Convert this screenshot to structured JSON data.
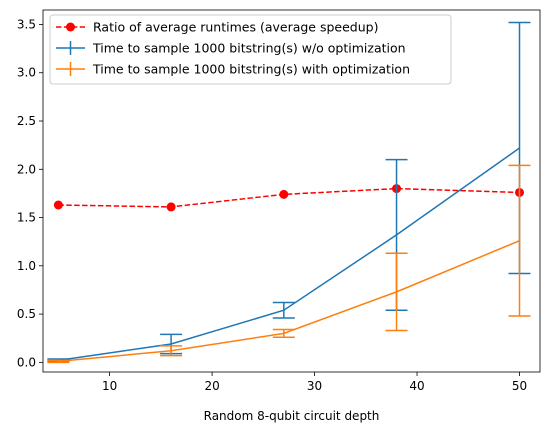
{
  "chart_data": {
    "type": "line",
    "xlabel": "Random 8-qubit circuit depth",
    "ylabel": "",
    "xlim": [
      3.5,
      52
    ],
    "ylim": [
      -0.1,
      3.65
    ],
    "xticks": [
      10,
      20,
      30,
      40,
      50
    ],
    "yticks": [
      0.0,
      0.5,
      1.0,
      1.5,
      2.0,
      2.5,
      3.0,
      3.5
    ],
    "x": [
      5,
      16,
      27,
      38,
      50
    ],
    "legend_position": "upper-left",
    "grid": false,
    "series": [
      {
        "name": "Ratio of average runtimes (average speedup)",
        "style": "dashed-markers",
        "color": "#ff0000",
        "values": [
          1.63,
          1.61,
          1.74,
          1.8,
          1.76
        ]
      },
      {
        "name": "Time to sample 1000 bitstring(s) w/o  optimization",
        "style": "errorbar",
        "color": "#1f77b4",
        "values": [
          0.02,
          0.19,
          0.54,
          1.32,
          2.22
        ],
        "errors": [
          0.015,
          0.1,
          0.08,
          0.78,
          1.3
        ]
      },
      {
        "name": "Time to sample 1000 bitstring(s) with optimization",
        "style": "errorbar",
        "color": "#ff7f0e",
        "values": [
          0.01,
          0.12,
          0.3,
          0.73,
          1.26
        ],
        "errors": [
          0.01,
          0.05,
          0.04,
          0.4,
          0.78
        ]
      }
    ]
  }
}
